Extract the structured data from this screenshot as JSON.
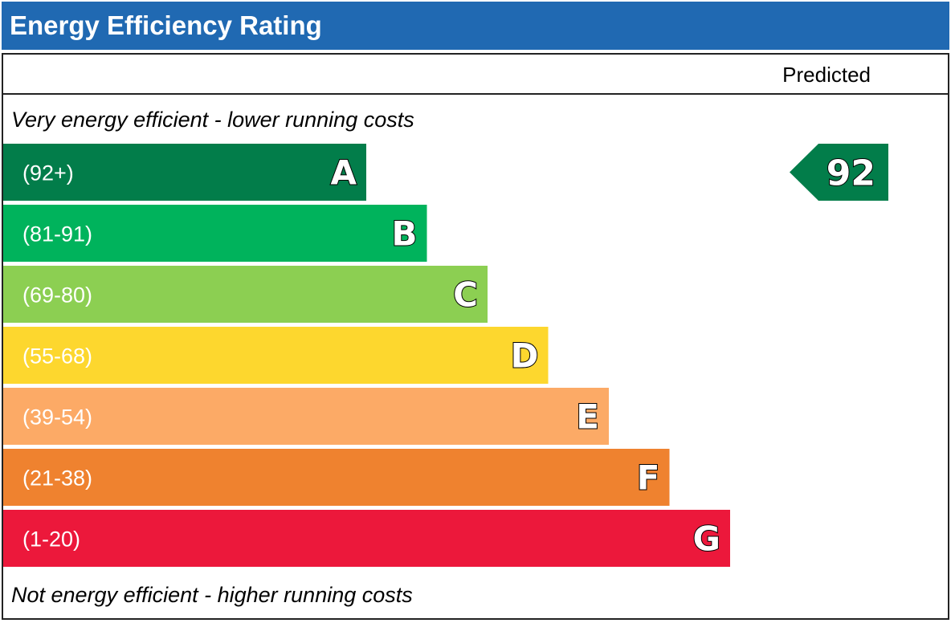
{
  "title": "Energy Efficiency Rating",
  "column_label": "Predicted",
  "top_caption": "Very energy efficient - lower running costs",
  "bottom_caption": "Not energy efficient - higher running costs",
  "chart_data": {
    "type": "bar",
    "bands": [
      {
        "letter": "A",
        "range": "(92+)",
        "color": "#027d4a"
      },
      {
        "letter": "B",
        "range": "(81-91)",
        "color": "#00b35c"
      },
      {
        "letter": "C",
        "range": "(69-80)",
        "color": "#8ccf52"
      },
      {
        "letter": "D",
        "range": "(55-68)",
        "color": "#fdd72e"
      },
      {
        "letter": "E",
        "range": "(39-54)",
        "color": "#fcaa66"
      },
      {
        "letter": "F",
        "range": "(21-38)",
        "color": "#ef822f"
      },
      {
        "letter": "G",
        "range": "(1-20)",
        "color": "#ec183b"
      }
    ],
    "predicted": {
      "value": 92,
      "band": "A",
      "color": "#027d4a"
    }
  }
}
